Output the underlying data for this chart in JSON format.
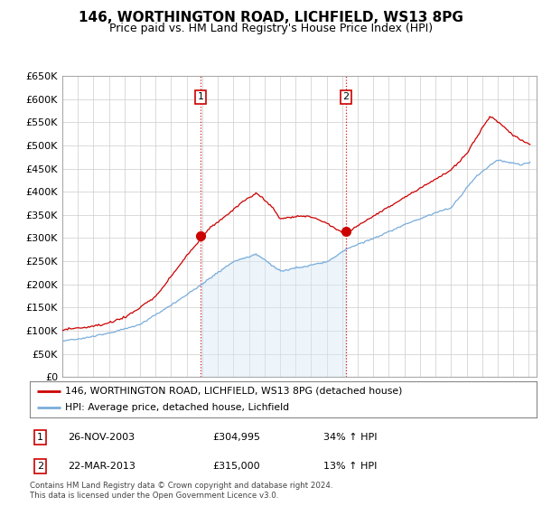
{
  "title": "146, WORTHINGTON ROAD, LICHFIELD, WS13 8PG",
  "subtitle": "Price paid vs. HM Land Registry's House Price Index (HPI)",
  "ylim": [
    0,
    650000
  ],
  "yticks": [
    0,
    50000,
    100000,
    150000,
    200000,
    250000,
    300000,
    350000,
    400000,
    450000,
    500000,
    550000,
    600000,
    650000
  ],
  "xlim_start": 1995,
  "xlim_end": 2025.5,
  "legend_property": "146, WORTHINGTON ROAD, LICHFIELD, WS13 8PG (detached house)",
  "legend_hpi": "HPI: Average price, detached house, Lichfield",
  "transaction1_label": "1",
  "transaction1_date": "26-NOV-2003",
  "transaction1_price": "£304,995",
  "transaction1_hpi": "34% ↑ HPI",
  "transaction1_x": 2003.9,
  "transaction1_y": 304995,
  "transaction2_label": "2",
  "transaction2_date": "22-MAR-2013",
  "transaction2_price": "£315,000",
  "transaction2_hpi": "13% ↑ HPI",
  "transaction2_x": 2013.25,
  "transaction2_y": 315000,
  "footer": "Contains HM Land Registry data © Crown copyright and database right 2024.\nThis data is licensed under the Open Government Licence v3.0.",
  "property_line_color": "#cc0000",
  "hpi_line_color": "#7aaddb",
  "hpi_fill_color": "#d8eaf7",
  "background_color": "#ffffff",
  "grid_color": "#cccccc",
  "title_fontsize": 11,
  "subtitle_fontsize": 9,
  "axis_fontsize": 8
}
